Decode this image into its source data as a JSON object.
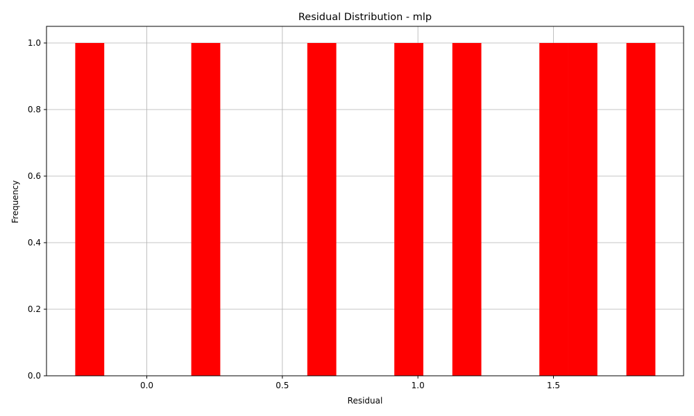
{
  "chart_data": {
    "type": "bar",
    "title": "Residual Distribution - mlp",
    "xlabel": "Residual",
    "ylabel": "Frequency",
    "xlim": [
      -0.37,
      1.98
    ],
    "ylim": [
      0.0,
      1.05
    ],
    "xticks": [
      0.0,
      0.5,
      1.0,
      1.5
    ],
    "xtick_labels": [
      "0.0",
      "0.5",
      "1.0",
      "1.5"
    ],
    "yticks": [
      0.0,
      0.2,
      0.4,
      0.6,
      0.8,
      1.0
    ],
    "ytick_labels": [
      "0.0",
      "0.2",
      "0.4",
      "0.6",
      "0.8",
      "1.0"
    ],
    "grid": true,
    "bar_color": "#ff0000",
    "bars": [
      {
        "x0": -0.264,
        "x1": -0.157,
        "value": 1
      },
      {
        "x0": 0.164,
        "x1": 0.271,
        "value": 1
      },
      {
        "x0": 0.592,
        "x1": 0.699,
        "value": 1
      },
      {
        "x0": 0.913,
        "x1": 1.02,
        "value": 1
      },
      {
        "x0": 1.127,
        "x1": 1.234,
        "value": 1
      },
      {
        "x0": 1.448,
        "x1": 1.555,
        "value": 1
      },
      {
        "x0": 1.555,
        "x1": 1.662,
        "value": 1
      },
      {
        "x0": 1.769,
        "x1": 1.876,
        "value": 1
      }
    ]
  }
}
